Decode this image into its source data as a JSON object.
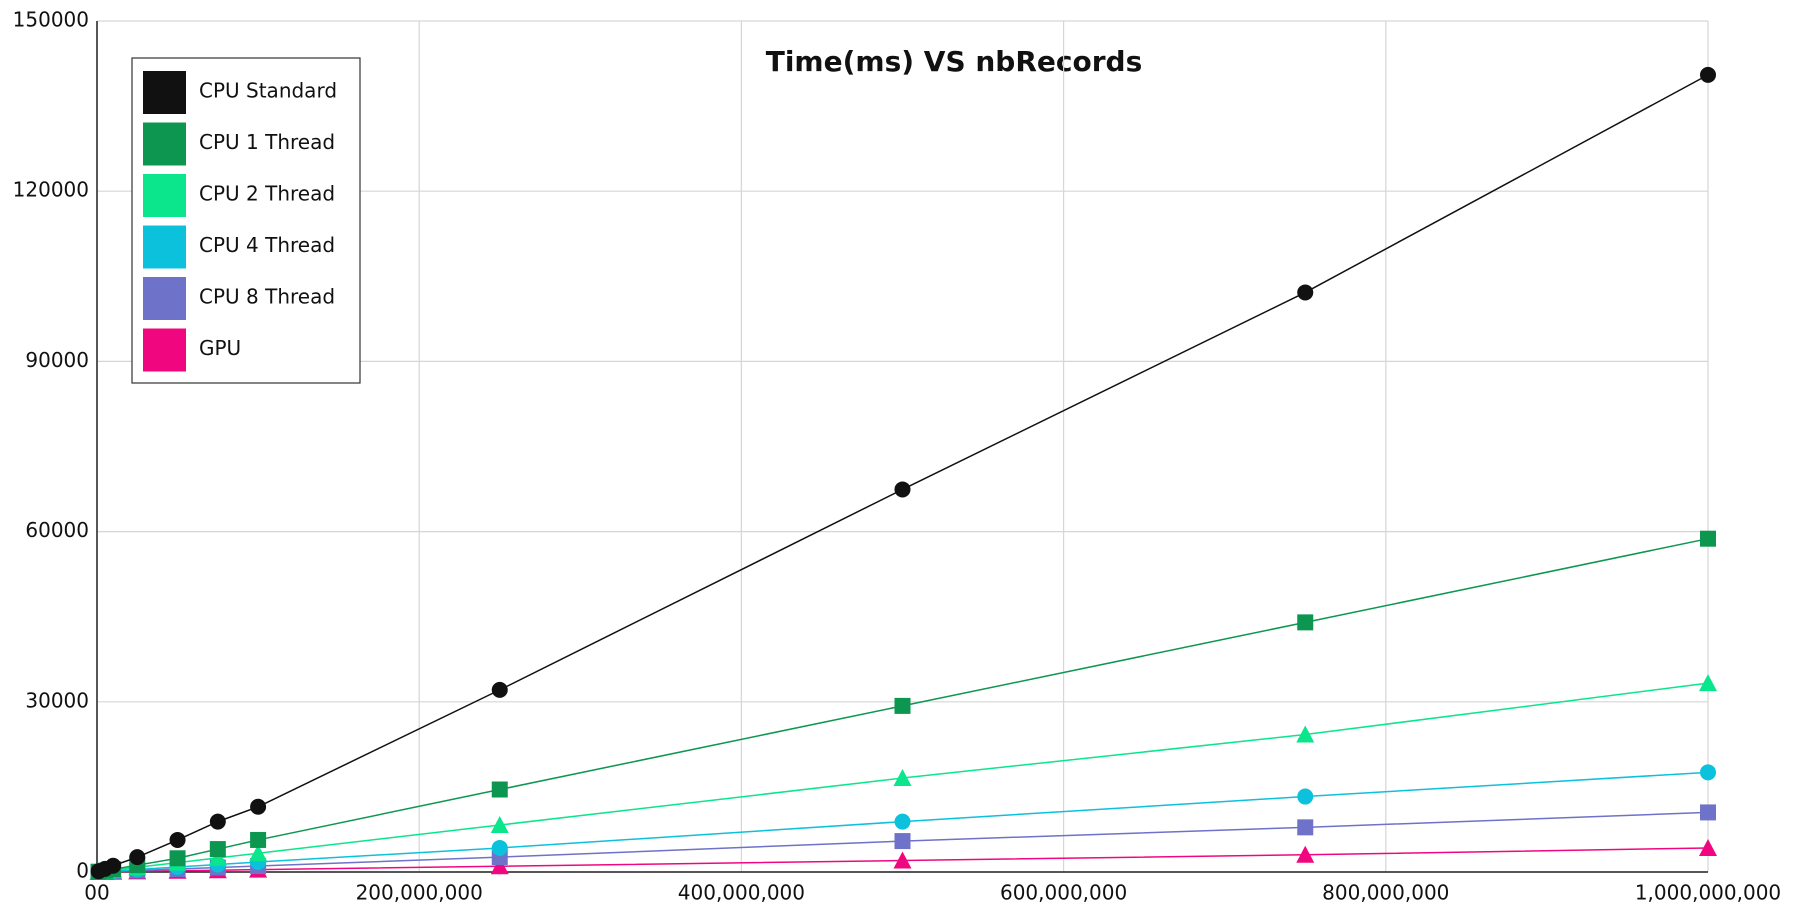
{
  "chart_data": {
    "type": "line",
    "title": "Time(ms) VS nbRecords",
    "x": [
      1000000,
      5000000,
      10000000,
      25000000,
      50000000,
      75000000,
      100000000,
      250000000,
      500000000,
      750000000,
      1000000000
    ],
    "series": [
      {
        "name": "CPU Standard",
        "color": "#111111",
        "marker": "circle",
        "values": [
          140,
          550,
          1100,
          2620,
          5650,
          8880,
          11500,
          32100,
          67430,
          102150,
          140500
        ]
      },
      {
        "name": "CPU 1 Thread",
        "color": "#0c9650",
        "marker": "square",
        "values": [
          50,
          240,
          480,
          1200,
          2420,
          4040,
          5650,
          14540,
          29280,
          44000,
          58750
        ]
      },
      {
        "name": "CPU 2 Thread",
        "color": "#0be58c",
        "marker": "triangle",
        "values": [
          35,
          170,
          330,
          830,
          1650,
          2480,
          3300,
          8280,
          16560,
          24230,
          33300
        ]
      },
      {
        "name": "CPU 4 Thread",
        "color": "#0cc1db",
        "marker": "circle",
        "values": [
          18,
          88,
          176,
          440,
          880,
          1320,
          1760,
          4240,
          8880,
          13300,
          17570
        ]
      },
      {
        "name": "CPU 8 Thread",
        "color": "#6e72c8",
        "marker": "square",
        "values": [
          10,
          52,
          105,
          260,
          525,
          790,
          1050,
          2620,
          5450,
          7870,
          10500
        ]
      },
      {
        "name": "GPU",
        "color": "#f0077f",
        "marker": "triangle",
        "values": [
          4,
          21,
          42,
          105,
          210,
          315,
          420,
          1010,
          2020,
          3030,
          4240
        ]
      }
    ],
    "xlim": [
      0,
      1000000000
    ],
    "xticks": [
      {
        "value": 0,
        "label": "00"
      },
      {
        "value": 200000000,
        "label": "200,000,000"
      },
      {
        "value": 400000000,
        "label": "400,000,000"
      },
      {
        "value": 600000000,
        "label": "600,000,000"
      },
      {
        "value": 800000000,
        "label": "800,000,000"
      },
      {
        "value": 1000000000,
        "label": "1,000,000,000"
      }
    ],
    "ylim": [
      0,
      150000
    ],
    "yticks": [
      0,
      30000,
      60000,
      90000,
      120000,
      150000
    ],
    "grid": true,
    "legend": "upper left"
  }
}
